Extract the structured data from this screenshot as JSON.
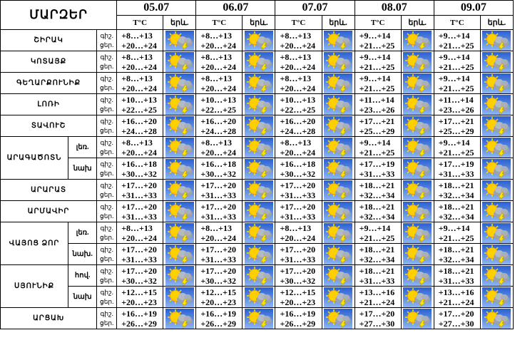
{
  "header": {
    "title": "ՄԱՐԶԵՐ",
    "dates": [
      "05.07",
      "06.07",
      "07.07",
      "08.07",
      "09.07"
    ],
    "temp_label": "T°C",
    "weather_label": "երև."
  },
  "period_labels": [
    "գիշ.",
    "ցեր."
  ],
  "regions": [
    {
      "name": "ՇԻՐԱԿ",
      "zones": [
        {
          "temps": [
            [
              "+8…+13",
              "+20…+24"
            ],
            [
              "+8…+13",
              "+20…+24"
            ],
            [
              "+8…+13",
              "+20…+24"
            ],
            [
              "+9…+14",
              "+21…+25"
            ],
            [
              "+9…+14",
              "+21…+25"
            ]
          ]
        }
      ]
    },
    {
      "name": "ԿՈՏԱՅՔ",
      "zones": [
        {
          "temps": [
            [
              "+8…+13",
              "+20…+24"
            ],
            [
              "+8…+13",
              "+20…+24"
            ],
            [
              "+8…+13",
              "+20…+24"
            ],
            [
              "+9…+14",
              "+21…+25"
            ],
            [
              "+9…+14",
              "+21…+25"
            ]
          ]
        }
      ]
    },
    {
      "name": "ԳԵՂԱՐՔՈՒՆԻՔ",
      "zones": [
        {
          "temps": [
            [
              "+8…+13",
              "+20…+24"
            ],
            [
              "+8…+13",
              "+20…+24"
            ],
            [
              "+8…+13",
              "+20…+24"
            ],
            [
              "+9…+14",
              "+21…+25"
            ],
            [
              "+9…+14",
              "+21…+25"
            ]
          ]
        }
      ]
    },
    {
      "name": "ԼՈՌԻ",
      "zones": [
        {
          "temps": [
            [
              "+10…+13",
              "+22…+25"
            ],
            [
              "+10…+13",
              "+22…+25"
            ],
            [
              "+10…+13",
              "+22…+25"
            ],
            [
              "+11…+14",
              "+23…+26"
            ],
            [
              "+11…+14",
              "+23…+26"
            ]
          ]
        }
      ]
    },
    {
      "name": "ՏԱՎՈՒՇ",
      "zones": [
        {
          "temps": [
            [
              "+16…+20",
              "+24…+28"
            ],
            [
              "+16…+20",
              "+24…+28"
            ],
            [
              "+16…+20",
              "+24…+28"
            ],
            [
              "+17…+21",
              "+25…+29"
            ],
            [
              "+17…+21",
              "+25…+29"
            ]
          ]
        }
      ]
    },
    {
      "name": "ԱՐԱԳԱԾՈՏՆ",
      "zones": [
        {
          "label": "լեռ.",
          "temps": [
            [
              "+8…+13",
              "+20…+24"
            ],
            [
              "+8…+13",
              "+20…+24"
            ],
            [
              "+8…+13",
              "+20…+24"
            ],
            [
              "+9…+14",
              "+21…+25"
            ],
            [
              "+9…+14",
              "+21…+25"
            ]
          ]
        },
        {
          "label": "նախ",
          "temps": [
            [
              "+16…+18",
              "+30…+32"
            ],
            [
              "+16…+18",
              "+30…+32"
            ],
            [
              "+16…+18",
              "+30…+32"
            ],
            [
              "+17…+19",
              "+31…+33"
            ],
            [
              "+17…+19",
              "+31…+33"
            ]
          ]
        }
      ]
    },
    {
      "name": "ԱՐԱՐԱՏ",
      "zones": [
        {
          "temps": [
            [
              "+17…+20",
              "+31…+33"
            ],
            [
              "+17…+20",
              "+31…+33"
            ],
            [
              "+17…+20",
              "+31…+33"
            ],
            [
              "+18…+21",
              "+32…+34"
            ],
            [
              "+18…+21",
              "+32…+34"
            ]
          ]
        }
      ]
    },
    {
      "name": "ԱՐՄԱՎԻՐ",
      "zones": [
        {
          "temps": [
            [
              "+17…+20",
              "+31…+33"
            ],
            [
              "+17…+20",
              "+31…+33"
            ],
            [
              "+17…+20",
              "+31…+33"
            ],
            [
              "+18…+21",
              "+32…+34"
            ],
            [
              "+18…+21",
              "+32…+34"
            ]
          ]
        }
      ]
    },
    {
      "name": "ՎԱՅՈՑ ՁՈՐ",
      "zones": [
        {
          "label": "լեռ.",
          "temps": [
            [
              "+8…+13",
              "+20…+24"
            ],
            [
              "+8…+13",
              "+20…+24"
            ],
            [
              "+8…+13",
              "+20…+24"
            ],
            [
              "+9…+14",
              "+21…+25"
            ],
            [
              "+9…+14",
              "+21…+25"
            ]
          ]
        },
        {
          "label": "նախ.",
          "temps": [
            [
              "+17…+20",
              "+31…+33"
            ],
            [
              "+17…+20",
              "+31…+33"
            ],
            [
              "+17…+20",
              "+31…+33"
            ],
            [
              "+18…+21",
              "+32…+34"
            ],
            [
              "+18…+21",
              "+32…+34"
            ]
          ]
        }
      ]
    },
    {
      "name": "ՍՅՈՒՆԻՔ",
      "zones": [
        {
          "label": "հով.",
          "temps": [
            [
              "+17…+20",
              "+30…+32"
            ],
            [
              "+17…+20",
              "+30…+32"
            ],
            [
              "+17…+20",
              "+30…+32"
            ],
            [
              "+18…+21",
              "+31…+33"
            ],
            [
              "+18…+21",
              "+31…+33"
            ]
          ]
        },
        {
          "label": "նախ",
          "temps": [
            [
              "+12…+15",
              "+20…+23"
            ],
            [
              "+12…+15",
              "+20…+23"
            ],
            [
              "+12…+15",
              "+20…+23"
            ],
            [
              "+13…+16",
              "+21…+24"
            ],
            [
              "+13…+16",
              "+21…+24"
            ]
          ]
        }
      ]
    },
    {
      "name": "ԱՐՑԱԽ",
      "zones": [
        {
          "temps": [
            [
              "+16…+19",
              "+26…+29"
            ],
            [
              "+16…+19",
              "+26…+29"
            ],
            [
              "+16…+19",
              "+26…+29"
            ],
            [
              "+17…+20",
              "+27…+30"
            ],
            [
              "+17…+20",
              "+27…+30"
            ]
          ]
        }
      ]
    }
  ]
}
